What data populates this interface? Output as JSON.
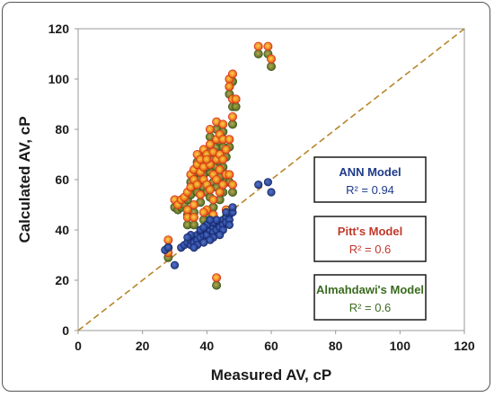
{
  "chart_data": {
    "type": "scatter",
    "xlabel": "Measured AV, cP",
    "ylabel": "Calculated AV, cP",
    "xlim": [
      0,
      120
    ],
    "ylim": [
      0,
      120
    ],
    "x_ticks": [
      "0",
      "20",
      "40",
      "60",
      "80",
      "100",
      "120"
    ],
    "y_ticks": [
      "0",
      "20",
      "40",
      "60",
      "80",
      "100",
      "120"
    ],
    "grid": false,
    "reference_line": {
      "x": [
        0,
        120
      ],
      "y": [
        0,
        120
      ],
      "style": "dashed",
      "color": "#b8862b"
    },
    "legend_boxes": [
      {
        "model": "ANN Model",
        "r2": "R² = 0.94",
        "color": "#1f3a8a",
        "r2_color": "#1f3a8a"
      },
      {
        "model": "Pitt's Model",
        "r2": "R² = 0.6",
        "color": "#c0392b",
        "r2_color": "#c0392b"
      },
      {
        "model": "Almahdawi's Model",
        "r2": "R² = 0.6",
        "color": "#3a6b1f",
        "r2_color": "#3a6b1f"
      }
    ],
    "series": [
      {
        "model": "ANN",
        "color": "#1f3a8a",
        "points": [
          [
            27,
            32
          ],
          [
            28,
            33
          ],
          [
            30,
            26
          ],
          [
            32,
            33
          ],
          [
            33,
            34
          ],
          [
            34,
            35
          ],
          [
            35,
            34
          ],
          [
            35,
            36
          ],
          [
            36,
            37
          ],
          [
            36,
            35
          ],
          [
            37,
            38
          ],
          [
            37,
            36
          ],
          [
            38,
            39
          ],
          [
            38,
            37
          ],
          [
            39,
            38
          ],
          [
            39,
            40
          ],
          [
            40,
            39
          ],
          [
            40,
            41
          ],
          [
            40,
            38
          ],
          [
            41,
            40
          ],
          [
            41,
            42
          ],
          [
            42,
            41
          ],
          [
            42,
            39
          ],
          [
            43,
            42
          ],
          [
            43,
            40
          ],
          [
            44,
            43
          ],
          [
            44,
            41
          ],
          [
            45,
            44
          ],
          [
            45,
            42
          ],
          [
            46,
            45
          ],
          [
            46,
            43
          ],
          [
            47,
            46
          ],
          [
            47,
            44
          ],
          [
            48,
            47
          ],
          [
            48,
            49
          ],
          [
            47,
            42
          ],
          [
            45,
            40
          ],
          [
            44,
            38
          ],
          [
            42,
            37
          ],
          [
            41,
            36
          ],
          [
            39,
            35
          ],
          [
            37,
            34
          ],
          [
            36,
            33
          ],
          [
            38,
            40
          ],
          [
            40,
            42
          ],
          [
            42,
            43
          ],
          [
            43,
            44
          ],
          [
            46,
            47
          ],
          [
            56,
            58
          ],
          [
            59,
            59
          ],
          [
            60,
            55
          ],
          [
            35,
            38
          ],
          [
            34,
            37
          ],
          [
            39,
            41
          ],
          [
            41,
            44
          ]
        ]
      },
      {
        "model": "Pitt's",
        "color": "#d8301c",
        "points": [
          [
            28,
            36
          ],
          [
            28,
            31
          ],
          [
            30,
            52
          ],
          [
            31,
            50
          ],
          [
            32,
            52
          ],
          [
            33,
            53
          ],
          [
            34,
            55
          ],
          [
            34,
            48
          ],
          [
            35,
            57
          ],
          [
            35,
            62
          ],
          [
            36,
            60
          ],
          [
            36,
            50
          ],
          [
            36,
            64
          ],
          [
            37,
            66
          ],
          [
            37,
            70
          ],
          [
            37,
            58
          ],
          [
            38,
            68
          ],
          [
            38,
            63
          ],
          [
            38,
            54
          ],
          [
            39,
            72
          ],
          [
            39,
            65
          ],
          [
            39,
            60
          ],
          [
            40,
            70
          ],
          [
            40,
            58
          ],
          [
            40,
            48
          ],
          [
            41,
            74
          ],
          [
            41,
            66
          ],
          [
            41,
            56
          ],
          [
            41,
            80
          ],
          [
            42,
            71
          ],
          [
            42,
            62
          ],
          [
            42,
            52
          ],
          [
            42,
            46
          ],
          [
            43,
            83
          ],
          [
            43,
            76
          ],
          [
            43,
            68
          ],
          [
            43,
            60
          ],
          [
            43,
            21
          ],
          [
            44,
            78
          ],
          [
            44,
            70
          ],
          [
            44,
            64
          ],
          [
            44,
            55
          ],
          [
            45,
            82
          ],
          [
            45,
            76
          ],
          [
            45,
            68
          ],
          [
            45,
            58
          ],
          [
            46,
            72
          ],
          [
            46,
            62
          ],
          [
            46,
            48
          ],
          [
            47,
            100
          ],
          [
            47,
            97
          ],
          [
            47,
            76
          ],
          [
            47,
            62
          ],
          [
            48,
            102
          ],
          [
            48,
            92
          ],
          [
            48,
            85
          ],
          [
            48,
            58
          ],
          [
            49,
            92
          ],
          [
            56,
            113
          ],
          [
            59,
            113
          ],
          [
            60,
            108
          ],
          [
            34,
            45
          ],
          [
            36,
            45
          ],
          [
            39,
            47
          ],
          [
            40,
            68
          ]
        ]
      },
      {
        "model": "Almahdawi's",
        "color": "#55701e",
        "points": [
          [
            28,
            33
          ],
          [
            28,
            29
          ],
          [
            30,
            49
          ],
          [
            31,
            48
          ],
          [
            32,
            49
          ],
          [
            33,
            50
          ],
          [
            34,
            52
          ],
          [
            34,
            46
          ],
          [
            35,
            54
          ],
          [
            35,
            59
          ],
          [
            36,
            57
          ],
          [
            36,
            47
          ],
          [
            36,
            61
          ],
          [
            37,
            63
          ],
          [
            37,
            67
          ],
          [
            37,
            55
          ],
          [
            38,
            65
          ],
          [
            38,
            60
          ],
          [
            38,
            51
          ],
          [
            39,
            69
          ],
          [
            39,
            62
          ],
          [
            39,
            57
          ],
          [
            40,
            67
          ],
          [
            40,
            55
          ],
          [
            40,
            45
          ],
          [
            41,
            71
          ],
          [
            41,
            63
          ],
          [
            41,
            53
          ],
          [
            41,
            77
          ],
          [
            42,
            68
          ],
          [
            42,
            59
          ],
          [
            42,
            49
          ],
          [
            42,
            43
          ],
          [
            43,
            80
          ],
          [
            43,
            73
          ],
          [
            43,
            65
          ],
          [
            43,
            57
          ],
          [
            43,
            18
          ],
          [
            44,
            75
          ],
          [
            44,
            67
          ],
          [
            44,
            61
          ],
          [
            44,
            52
          ],
          [
            45,
            79
          ],
          [
            45,
            73
          ],
          [
            45,
            65
          ],
          [
            45,
            55
          ],
          [
            46,
            69
          ],
          [
            46,
            59
          ],
          [
            46,
            45
          ],
          [
            47,
            97
          ],
          [
            47,
            94
          ],
          [
            47,
            73
          ],
          [
            47,
            59
          ],
          [
            48,
            99
          ],
          [
            48,
            89
          ],
          [
            48,
            82
          ],
          [
            48,
            55
          ],
          [
            49,
            89
          ],
          [
            56,
            110
          ],
          [
            59,
            110
          ],
          [
            60,
            105
          ],
          [
            34,
            42
          ],
          [
            36,
            42
          ],
          [
            39,
            44
          ],
          [
            40,
            65
          ]
        ]
      }
    ]
  }
}
